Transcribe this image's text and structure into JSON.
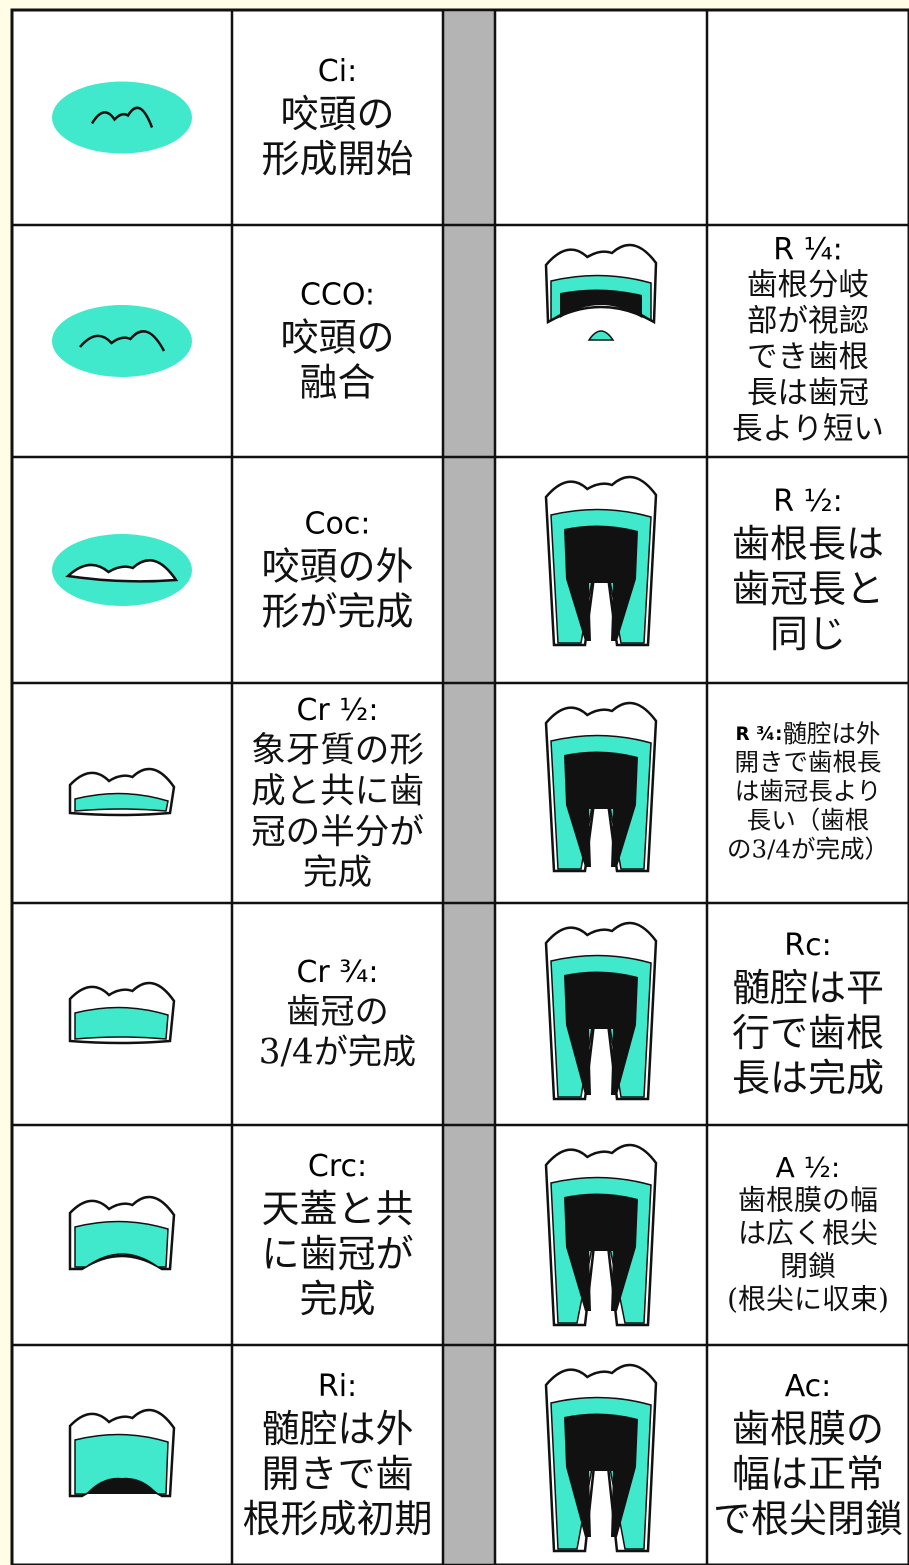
{
  "rows": [
    {
      "left": {
        "code": "Ci:",
        "lines": [
          "咬頭の",
          "形成開始"
        ]
      }
    },
    {
      "left": {
        "code": "CCO:",
        "lines": [
          "咬頭の",
          "融合"
        ]
      },
      "right": {
        "code": "R ¼:",
        "lines": [
          "歯根分岐",
          "部が視認",
          "でき歯根",
          "長は歯冠",
          "長より短い"
        ]
      }
    },
    {
      "left": {
        "code": "Coc:",
        "lines": [
          "咬頭の外",
          "形が完成"
        ]
      },
      "right": {
        "code": "R ½:",
        "lines": [
          "歯根長は",
          "歯冠長と",
          "同じ"
        ]
      }
    },
    {
      "left": {
        "code": "Cr ½:",
        "lines": [
          "象牙質の形",
          "成と共に歯",
          "冠の半分が",
          "完成"
        ]
      },
      "right": {
        "code": "R ¾:",
        "code_inline": true,
        "lines": [
          "髄腔は外",
          "開きで歯根長",
          "は歯冠長より",
          "長い（歯根",
          "の3/4が完成）"
        ]
      }
    },
    {
      "left": {
        "code": "Cr ¾:",
        "lines": [
          "歯冠の",
          "3/4が完成"
        ]
      },
      "right": {
        "code": "Rc:",
        "lines": [
          "髄腔は平",
          "行で歯根",
          "長は完成"
        ]
      }
    },
    {
      "left": {
        "code": "Crc:",
        "lines": [
          "天蓋と共",
          "に歯冠が",
          "完成"
        ]
      },
      "right": {
        "code": "A ½:",
        "lines": [
          "歯根膜の幅",
          "は広く根尖",
          "閉鎖",
          "(根尖に収束)"
        ]
      }
    },
    {
      "left": {
        "code": "Ri:",
        "lines": [
          "髄腔は外",
          "開きで歯",
          "根形成初期"
        ]
      },
      "right": {
        "code": "Ac:",
        "lines": [
          "歯根膜の",
          "幅は正常",
          "で根尖閉鎖"
        ]
      }
    }
  ]
}
